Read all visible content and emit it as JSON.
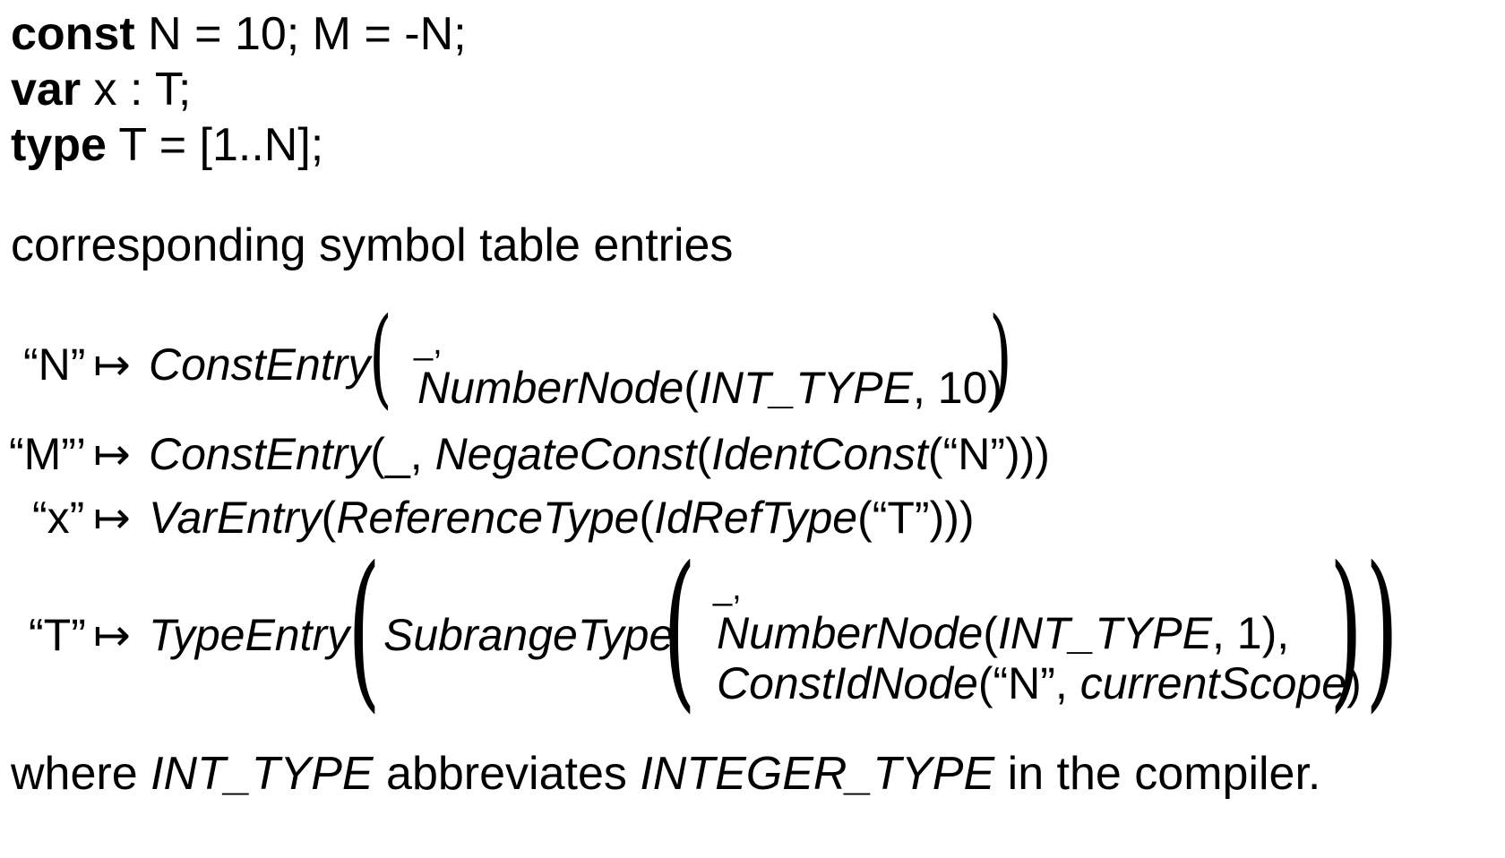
{
  "code": {
    "line1": {
      "kw": "const",
      "rest": " N = 10; M = -N;"
    },
    "line2": {
      "kw": "var",
      "rest": " x : T;"
    },
    "line3": {
      "kw": "type",
      "rest": " T = [1..N];"
    }
  },
  "caption": "corresponding symbol table entries",
  "entries": {
    "n": {
      "key": "“N”",
      "arrow": "↦",
      "ctor": "ConstEntry",
      "blank": "_,",
      "node_name": "NumberNode",
      "node_open": "(",
      "node_type": "INT_TYPE",
      "node_rest": ", 10)"
    },
    "m": {
      "key": "“M”’",
      "arrow": "↦",
      "ctor": "ConstEntry",
      "a": "(_, ",
      "neg": "NegateConst",
      "b": "(",
      "ident": "IdentConst",
      "c": "(“N”)))"
    },
    "x": {
      "key": "“x”",
      "arrow": "↦",
      "ctor": "VarEntry",
      "a": "(",
      "ref": "ReferenceType",
      "b": "(",
      "idref": "IdRefType",
      "c": "(“T”)))"
    },
    "t": {
      "key": "“T”",
      "arrow": "↦",
      "ctor": "TypeEntry",
      "sub": "SubrangeType",
      "blank": "_,",
      "node1_name": "NumberNode",
      "node1_open": "(",
      "node1_type": "INT_TYPE",
      "node1_rest": ", 1),",
      "node2_name": "ConstIdNode",
      "node2_a": "(“N”, ",
      "node2_scope": "currentScope",
      "node2_b": ")"
    }
  },
  "footer": {
    "a": "where ",
    "b": "INT_TYPE",
    "c": " abbreviates ",
    "d": "INTEGER_TYPE",
    "e": " in the compiler."
  }
}
